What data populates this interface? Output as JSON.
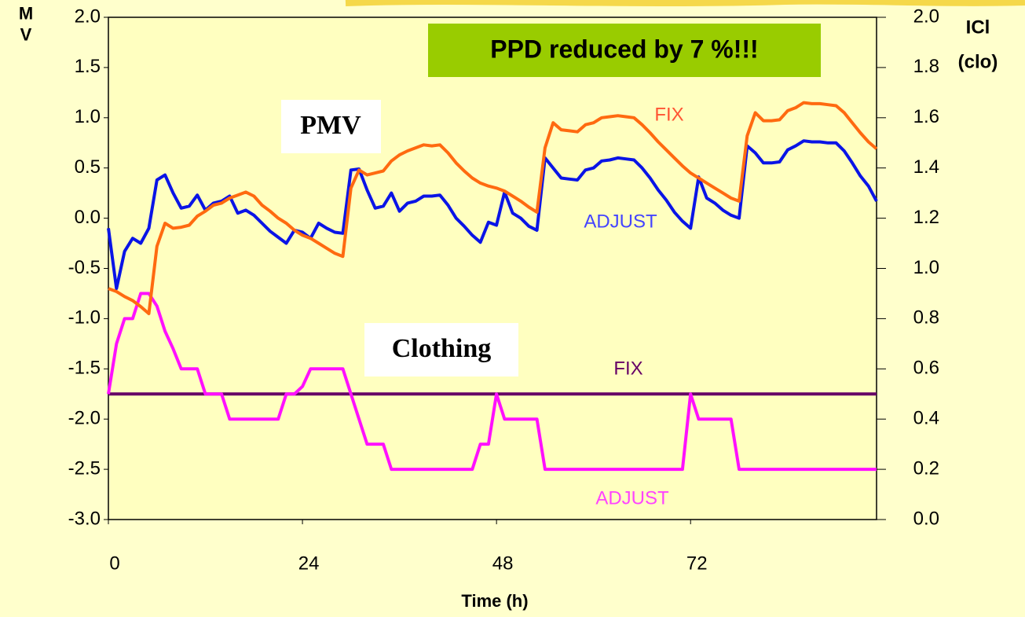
{
  "chart_data": {
    "type": "line",
    "xlabel": "Time (h)",
    "ylabel": "PMV",
    "y2label": [
      "ICl",
      "(clo)"
    ],
    "annotations": [
      "PPD reduced by 7 %!!!",
      "PMV",
      "Clothing"
    ],
    "xlim": [
      0,
      95
    ],
    "xticks": [
      0,
      24,
      48,
      72
    ],
    "ylim": [
      -3,
      2
    ],
    "yticks": [
      {
        "value": -3,
        "label": "-3.0"
      },
      -2.5,
      {
        "value": -2,
        "label": "-2.0"
      },
      -1.5,
      {
        "value": -1,
        "label": "-1.0"
      },
      -0.5,
      {
        "value": 0,
        "label": "0.0"
      },
      0.5,
      {
        "value": 1,
        "label": "1.0"
      },
      1.5,
      {
        "value": 2,
        "label": "2.0"
      }
    ],
    "y2lim": [
      0,
      2
    ],
    "y2ticks": [
      {
        "value": 0,
        "label": "0.0"
      },
      0.2,
      0.4,
      0.6,
      0.8,
      {
        "value": 1,
        "label": "1.0"
      },
      1.2,
      1.4,
      1.6,
      1.8,
      {
        "value": 2,
        "label": "2.0"
      }
    ],
    "grid": false,
    "x": [
      0,
      1,
      2,
      3,
      4,
      5,
      6,
      7,
      8,
      9,
      10,
      11,
      12,
      13,
      14,
      15,
      16,
      17,
      18,
      19,
      20,
      21,
      22,
      23,
      24,
      25,
      26,
      27,
      28,
      29,
      30,
      31,
      32,
      33,
      34,
      35,
      36,
      37,
      38,
      39,
      40,
      41,
      42,
      43,
      44,
      45,
      46,
      47,
      48,
      49,
      50,
      51,
      52,
      53,
      54,
      55,
      56,
      57,
      58,
      59,
      60,
      61,
      62,
      63,
      64,
      65,
      66,
      67,
      68,
      69,
      70,
      71,
      72,
      73,
      74,
      75,
      76,
      77,
      78,
      79,
      80,
      81,
      82,
      83,
      84,
      85,
      86,
      87,
      88,
      89,
      90,
      91,
      92,
      93,
      94,
      95
    ],
    "series": [
      {
        "name": "ADJUST",
        "color": "#0a14e6",
        "values": [
          -0.1,
          -0.7,
          -0.33,
          -0.2,
          -0.25,
          -0.1,
          0.38,
          0.43,
          0.25,
          0.1,
          0.12,
          0.23,
          0.08,
          0.15,
          0.17,
          0.22,
          0.05,
          0.08,
          0.03,
          -0.05,
          -0.13,
          -0.19,
          -0.25,
          -0.12,
          -0.14,
          -0.2,
          -0.05,
          -0.1,
          -0.14,
          -0.15,
          0.48,
          0.49,
          0.28,
          0.1,
          0.12,
          0.25,
          0.07,
          0.15,
          0.17,
          0.22,
          0.22,
          0.23,
          0.13,
          0.0,
          -0.08,
          -0.17,
          -0.24,
          -0.04,
          -0.07,
          0.26,
          0.05,
          0.0,
          -0.08,
          -0.12,
          0.6,
          0.5,
          0.4,
          0.39,
          0.38,
          0.48,
          0.5,
          0.57,
          0.58,
          0.6,
          0.59,
          0.58,
          0.5,
          0.4,
          0.28,
          0.18,
          0.06,
          -0.03,
          -0.1,
          0.41,
          0.2,
          0.15,
          0.08,
          0.03,
          0.0,
          0.72,
          0.65,
          0.55,
          0.55,
          0.56,
          0.68,
          0.72,
          0.77,
          0.76,
          0.76,
          0.75,
          0.75,
          0.67,
          0.55,
          0.42,
          0.32,
          0.17
        ]
      },
      {
        "name": "FIX",
        "color": "#ff6a10",
        "values": [
          -0.7,
          -0.73,
          -0.78,
          -0.82,
          -0.88,
          -0.95,
          -0.28,
          -0.05,
          -0.1,
          -0.09,
          -0.07,
          0.02,
          0.07,
          0.13,
          0.15,
          0.2,
          0.23,
          0.26,
          0.22,
          0.13,
          0.07,
          0.0,
          -0.05,
          -0.12,
          -0.17,
          -0.2,
          -0.25,
          -0.3,
          -0.35,
          -0.38,
          0.3,
          0.48,
          0.43,
          0.45,
          0.47,
          0.57,
          0.63,
          0.67,
          0.7,
          0.73,
          0.72,
          0.73,
          0.65,
          0.55,
          0.47,
          0.4,
          0.35,
          0.32,
          0.3,
          0.27,
          0.22,
          0.17,
          0.11,
          0.06,
          0.7,
          0.95,
          0.88,
          0.87,
          0.86,
          0.93,
          0.95,
          1.0,
          1.01,
          1.02,
          1.01,
          1.0,
          0.93,
          0.85,
          0.76,
          0.68,
          0.6,
          0.52,
          0.45,
          0.4,
          0.35,
          0.3,
          0.25,
          0.2,
          0.17,
          0.82,
          1.05,
          0.97,
          0.97,
          0.98,
          1.07,
          1.1,
          1.15,
          1.14,
          1.14,
          1.13,
          1.12,
          1.05,
          0.95,
          0.85,
          0.76,
          0.69
        ]
      },
      {
        "name": "FIX",
        "color": "#660066",
        "axis": "y2",
        "x": [
          0,
          95
        ],
        "values": [
          0.5,
          0.5
        ]
      },
      {
        "name": "ADJUST",
        "color": "#ff10ff",
        "axis": "y2",
        "values": [
          0.5,
          0.7,
          0.8,
          0.8,
          0.9,
          0.9,
          0.85,
          0.75,
          0.68,
          0.6,
          0.6,
          0.6,
          0.5,
          0.5,
          0.5,
          0.4,
          0.4,
          0.4,
          0.4,
          0.4,
          0.4,
          0.4,
          0.5,
          0.5,
          0.53,
          0.6,
          0.6,
          0.6,
          0.6,
          0.6,
          0.5,
          0.4,
          0.3,
          0.3,
          0.3,
          0.2,
          0.2,
          0.2,
          0.2,
          0.2,
          0.2,
          0.2,
          0.2,
          0.2,
          0.2,
          0.2,
          0.3,
          0.3,
          0.5,
          0.4,
          0.4,
          0.4,
          0.4,
          0.4,
          0.2,
          0.2,
          0.2,
          0.2,
          0.2,
          0.2,
          0.2,
          0.2,
          0.2,
          0.2,
          0.2,
          0.2,
          0.2,
          0.2,
          0.2,
          0.2,
          0.2,
          0.2,
          0.5,
          0.4,
          0.4,
          0.4,
          0.4,
          0.4,
          0.2,
          0.2,
          0.2,
          0.2,
          0.2,
          0.2,
          0.2,
          0.2,
          0.2,
          0.2,
          0.2,
          0.2,
          0.2,
          0.2,
          0.2,
          0.2,
          0.2,
          0.2
        ]
      }
    ]
  }
}
